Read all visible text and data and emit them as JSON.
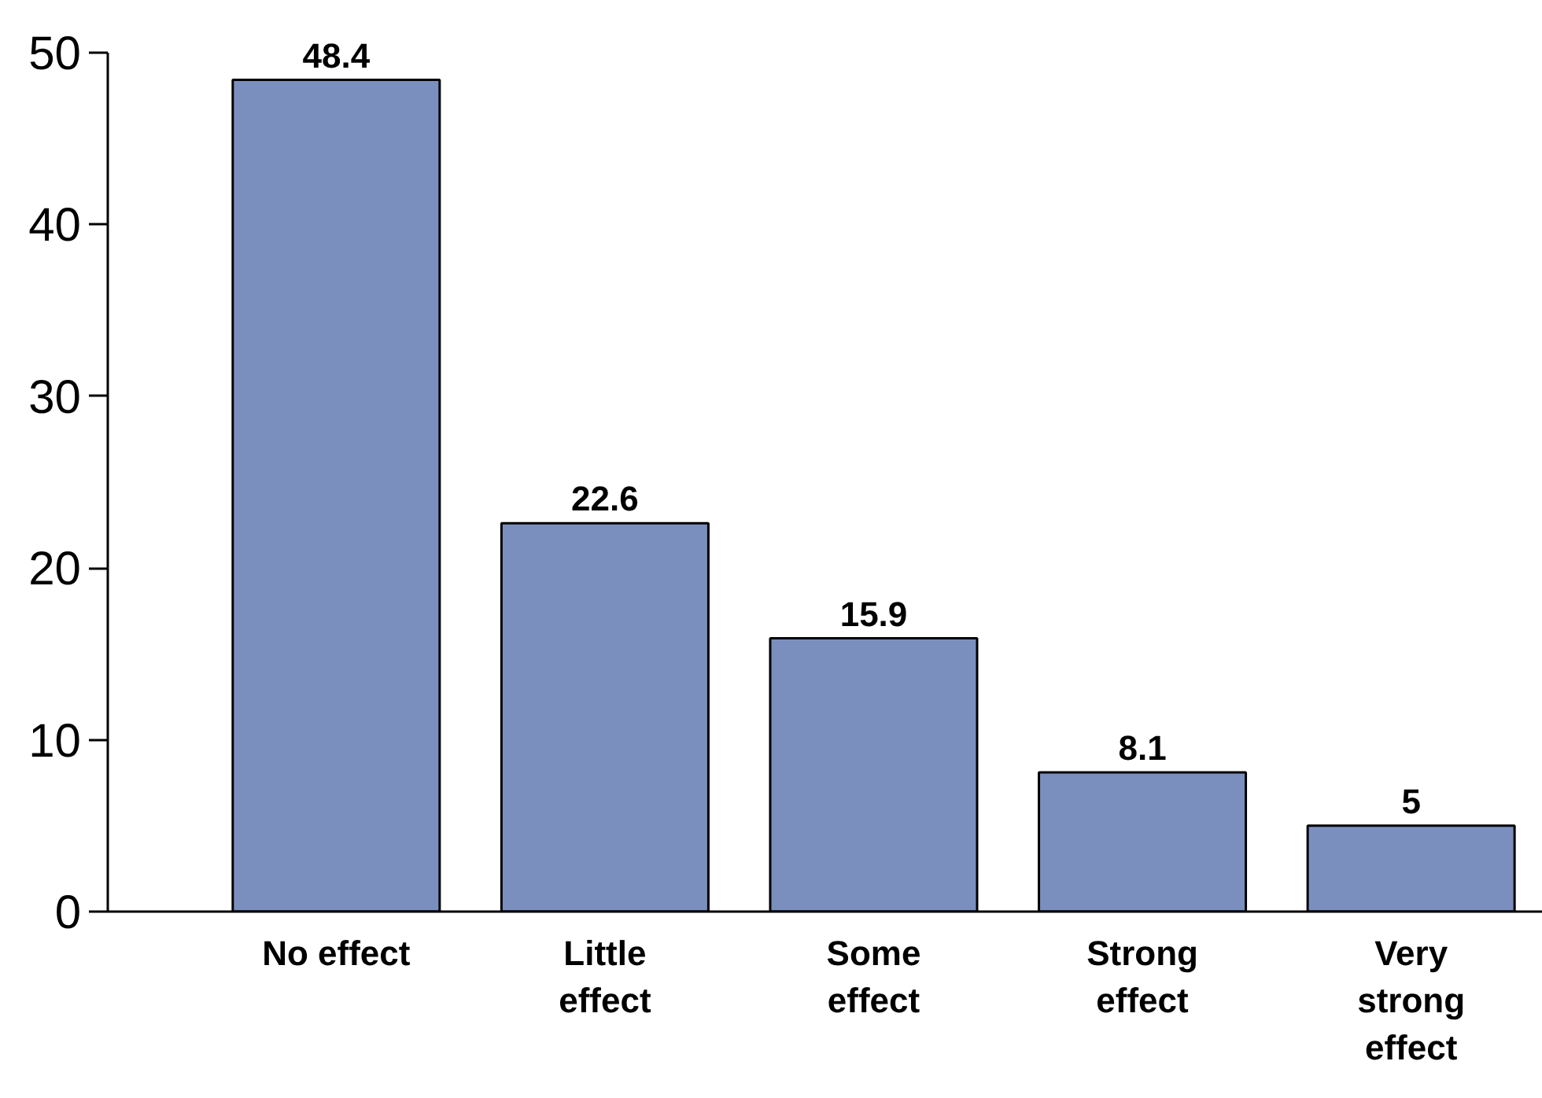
{
  "chart_data": {
    "type": "bar",
    "categories": [
      "No effect",
      "Little effect",
      "Some effect",
      "Strong effect",
      "Very strong effect"
    ],
    "values": [
      48.4,
      22.6,
      15.9,
      8.1,
      5
    ],
    "color": "#7b8fbf",
    "ylim": [
      0,
      50
    ],
    "yticks": [
      0,
      10,
      20,
      30,
      40,
      50
    ],
    "data_labels": true,
    "grid": false
  }
}
